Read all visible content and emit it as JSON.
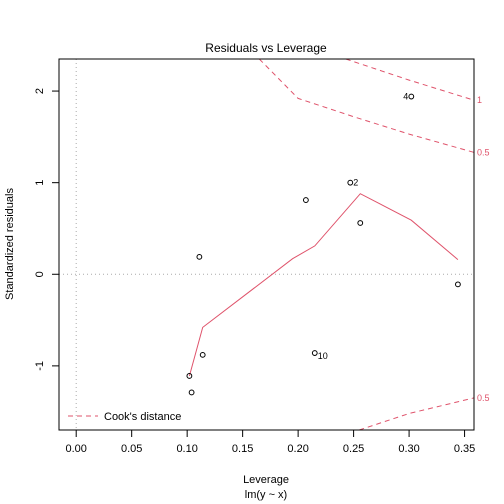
{
  "chart_data": {
    "type": "scatter",
    "title": "Residuals vs Leverage",
    "xlabel": "Leverage",
    "xlabel2": "lm(y ~ x)",
    "ylabel": "Standardized residuals",
    "xlim": [
      -0.0155,
      0.3585
    ],
    "ylim": [
      -1.7,
      2.35
    ],
    "x_ticks": [
      0.0,
      0.05,
      0.1,
      0.15,
      0.2,
      0.25,
      0.3,
      0.35
    ],
    "x_tick_labels": [
      "0.00",
      "0.05",
      "0.10",
      "0.15",
      "0.20",
      "0.25",
      "0.30",
      "0.35"
    ],
    "y_ticks": [
      -1,
      0,
      1,
      2
    ],
    "y_tick_labels": [
      "-1",
      "0",
      "1",
      "2"
    ],
    "points": [
      {
        "x": 0.302,
        "y": 1.94,
        "label": "4"
      },
      {
        "x": 0.247,
        "y": 1.0,
        "label": "2"
      },
      {
        "x": 0.207,
        "y": 0.81,
        "label": ""
      },
      {
        "x": 0.256,
        "y": 0.56,
        "label": ""
      },
      {
        "x": 0.111,
        "y": 0.19,
        "label": ""
      },
      {
        "x": 0.344,
        "y": -0.11,
        "label": ""
      },
      {
        "x": 0.114,
        "y": -0.88,
        "label": ""
      },
      {
        "x": 0.215,
        "y": -0.86,
        "label": "10"
      },
      {
        "x": 0.102,
        "y": -1.11,
        "label": ""
      },
      {
        "x": 0.104,
        "y": -1.29,
        "label": ""
      }
    ],
    "smooth": {
      "x": [
        0.102,
        0.114,
        0.195,
        0.215,
        0.256,
        0.302,
        0.344
      ],
      "y": [
        -1.11,
        -0.58,
        0.17,
        0.31,
        0.88,
        0.59,
        0.16
      ],
      "color": "#DF536B"
    },
    "cook_contours": {
      "color": "#DF536B",
      "levels": [
        {
          "label": "1",
          "side": "upper",
          "points": [
            [
              0.243,
              2.35
            ],
            [
              0.3,
              2.12
            ],
            [
              0.3585,
              1.9
            ]
          ]
        },
        {
          "label": "0.5",
          "side": "upper",
          "points": [
            [
              0.165,
              2.35
            ],
            [
              0.2,
              1.92
            ],
            [
              0.25,
              1.72
            ],
            [
              0.3,
              1.53
            ],
            [
              0.3585,
              1.33
            ]
          ]
        },
        {
          "label": "0.5",
          "side": "lower",
          "points": [
            [
              0.255,
              -1.7
            ],
            [
              0.3,
              -1.52
            ],
            [
              0.3585,
              -1.35
            ]
          ]
        }
      ]
    },
    "reference_lines": {
      "h": 0,
      "v": 0,
      "color": "#aaaaaa"
    },
    "legend": {
      "entries": [
        "Cook's distance"
      ],
      "position": "bottom-left"
    },
    "grid": false
  }
}
